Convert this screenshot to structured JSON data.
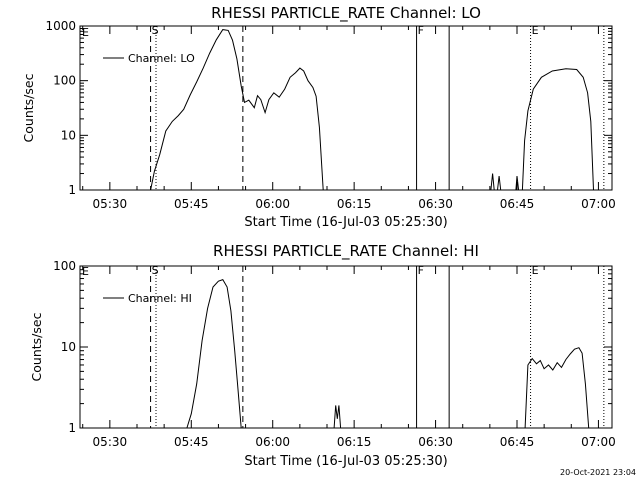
{
  "chart_data": [
    {
      "type": "line",
      "title": "RHESSI PARTICLE_RATE Channel: LO",
      "xlabel": "Start Time (16-Jul-03 05:25:30)",
      "ylabel": "Counts/sec",
      "yscale": "log",
      "ylim": [
        1,
        1000
      ],
      "xlim_minutes_after_0525": [
        -0.5,
        97.5
      ],
      "x_tick_labels": [
        "05:30",
        "05:45",
        "06:00",
        "06:15",
        "06:30",
        "06:45",
        "07:00"
      ],
      "x_tick_minutes": [
        5,
        20,
        35,
        50,
        65,
        80,
        95
      ],
      "y_tick_labels": [
        "1",
        "10",
        "100",
        "1000"
      ],
      "y_tick_values": [
        1,
        10,
        100,
        1000
      ],
      "legend": "Channel: LO",
      "markers": [
        {
          "label": "S",
          "minute": 12.5,
          "style": "dashed"
        },
        {
          "label": "",
          "minute": 13.5,
          "style": "dotted"
        },
        {
          "label": "",
          "minute": 29.5,
          "style": "dashed"
        },
        {
          "label": "F",
          "minute": 61.5,
          "style": "solid"
        },
        {
          "label": "",
          "minute": 67.5,
          "style": "solid"
        },
        {
          "label": "E",
          "minute": 82.5,
          "style": "dotted"
        },
        {
          "label": "",
          "minute": 96.0,
          "style": "dotted"
        }
      ],
      "edge_label_left": "E",
      "series": [
        {
          "name": "Channel: LO",
          "segments": [
            [
              [
                12.5,
                1
              ],
              [
                13.2,
                2.2
              ],
              [
                14.2,
                4.5
              ],
              [
                15.3,
                12
              ],
              [
                16.5,
                18
              ],
              [
                17.6,
                23
              ],
              [
                18.6,
                30
              ],
              [
                19.8,
                55
              ],
              [
                21,
                95
              ],
              [
                22.2,
                170
              ],
              [
                23.4,
                320
              ],
              [
                24.6,
                560
              ],
              [
                25.8,
                860
              ],
              [
                26.8,
                830
              ],
              [
                27.6,
                550
              ],
              [
                28.4,
                250
              ],
              [
                29.2,
                80
              ],
              [
                29.8,
                40
              ],
              [
                30.6,
                44
              ],
              [
                31.6,
                32
              ],
              [
                32.2,
                53
              ],
              [
                32.8,
                45
              ],
              [
                33.6,
                26
              ],
              [
                34.3,
                45
              ],
              [
                35.2,
                60
              ],
              [
                36.2,
                50
              ],
              [
                37.2,
                70
              ],
              [
                38.2,
                115
              ],
              [
                39.2,
                140
              ],
              [
                40,
                170
              ],
              [
                40.7,
                150
              ],
              [
                41.5,
                100
              ],
              [
                42.4,
                75
              ],
              [
                43,
                52
              ],
              [
                43.6,
                14
              ],
              [
                44.3,
                1
              ]
            ],
            [
              [
                75.2,
                1
              ],
              [
                75.5,
                2
              ],
              [
                75.8,
                1
              ]
            ],
            [
              [
                76.4,
                1
              ],
              [
                76.7,
                1.8
              ],
              [
                77,
                1
              ]
            ],
            [
              [
                79.8,
                1
              ],
              [
                80,
                1.8
              ],
              [
                80.3,
                1
              ]
            ],
            [
              [
                81,
                1
              ],
              [
                81.4,
                8
              ],
              [
                82,
                28
              ],
              [
                83,
                70
              ],
              [
                84.5,
                115
              ],
              [
                86.5,
                150
              ],
              [
                89,
                165
              ],
              [
                91,
                160
              ],
              [
                92.2,
                115
              ],
              [
                93,
                60
              ],
              [
                93.6,
                18
              ],
              [
                94.1,
                1
              ]
            ]
          ]
        }
      ]
    },
    {
      "type": "line",
      "title": "RHESSI PARTICLE_RATE Channel: HI",
      "xlabel": "Start Time (16-Jul-03 05:25:30)",
      "ylabel": "Counts/sec",
      "yscale": "log",
      "ylim": [
        1,
        100
      ],
      "xlim_minutes_after_0525": [
        -0.5,
        97.5
      ],
      "x_tick_labels": [
        "05:30",
        "05:45",
        "06:00",
        "06:15",
        "06:30",
        "06:45",
        "07:00"
      ],
      "x_tick_minutes": [
        5,
        20,
        35,
        50,
        65,
        80,
        95
      ],
      "y_tick_labels": [
        "1",
        "10",
        "100"
      ],
      "y_tick_values": [
        1,
        10,
        100
      ],
      "legend": "Channel: HI",
      "markers": [
        {
          "label": "S",
          "minute": 12.5,
          "style": "dashed"
        },
        {
          "label": "",
          "minute": 13.5,
          "style": "dotted"
        },
        {
          "label": "",
          "minute": 29.5,
          "style": "dashed"
        },
        {
          "label": "F",
          "minute": 61.5,
          "style": "solid"
        },
        {
          "label": "",
          "minute": 67.5,
          "style": "solid"
        },
        {
          "label": "E",
          "minute": 82.5,
          "style": "dotted"
        },
        {
          "label": "",
          "minute": 96.0,
          "style": "dotted"
        }
      ],
      "edge_label_left": "E",
      "series": [
        {
          "name": "Channel: HI",
          "segments": [
            [
              [
                19.2,
                1
              ],
              [
                20,
                1.5
              ],
              [
                21,
                3.5
              ],
              [
                22,
                12
              ],
              [
                23,
                30
              ],
              [
                24,
                55
              ],
              [
                25,
                65
              ],
              [
                25.8,
                68
              ],
              [
                26.6,
                55
              ],
              [
                27.3,
                28
              ],
              [
                28,
                9
              ],
              [
                28.6,
                3
              ],
              [
                29.2,
                1
              ]
            ],
            [
              [
                46.3,
                1
              ],
              [
                46.6,
                1.9
              ],
              [
                46.9,
                1.3
              ],
              [
                47.2,
                1.9
              ],
              [
                47.5,
                1
              ]
            ],
            [
              [
                81.5,
                1
              ],
              [
                82,
                6
              ],
              [
                82.8,
                7.2
              ],
              [
                83.6,
                6.2
              ],
              [
                84.3,
                6.8
              ],
              [
                85,
                5.4
              ],
              [
                85.8,
                6
              ],
              [
                86.6,
                5.2
              ],
              [
                87.4,
                6.4
              ],
              [
                88.2,
                5.6
              ],
              [
                89,
                7
              ],
              [
                89.8,
                8.2
              ],
              [
                90.6,
                9.4
              ],
              [
                91.4,
                9.8
              ],
              [
                92,
                8.4
              ],
              [
                92.6,
                3.5
              ],
              [
                93.2,
                1
              ]
            ]
          ]
        }
      ]
    }
  ],
  "footer_timestamp": "20-Oct-2021 23:04"
}
